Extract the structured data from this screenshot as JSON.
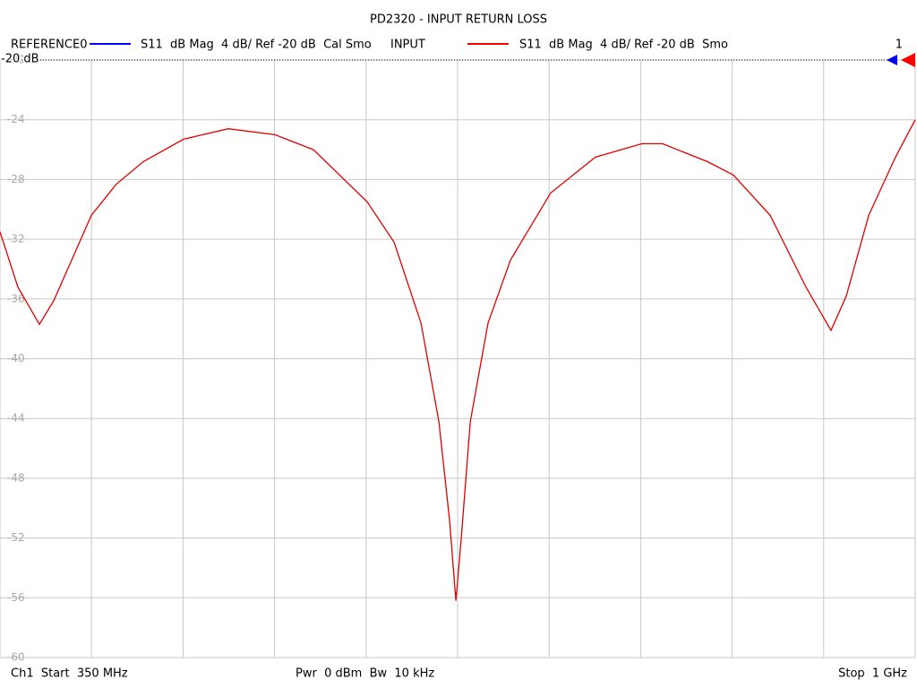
{
  "chart_data": {
    "type": "line",
    "title": "PD2320 - INPUT RETURN LOSS",
    "legend": [
      {
        "name": "REFERENCE0",
        "color": "#0000ff",
        "description": "S11  dB Mag  4 dB/ Ref -20 dB  Cal Smo"
      },
      {
        "name": "INPUT",
        "color": "#ff0000",
        "description": "S11  dB Mag  4 dB/ Ref -20 dB  Smo"
      }
    ],
    "channel_marker": "1",
    "ref_label": "-20 dB",
    "footer": {
      "start": "Ch1  Start  350 MHz",
      "center": "Pwr  0 dBm  Bw  10 kHz",
      "stop": "Stop  1 GHz"
    },
    "x": [
      350,
      362.7,
      378,
      388.2,
      400.9,
      414.9,
      432.7,
      451.8,
      480.4,
      512.2,
      545.3,
      572.6,
      610.8,
      629.9,
      649,
      661.7,
      669.3,
      673.8,
      677.6,
      684,
      696.6,
      712.5,
      741.1,
      772.9,
      806,
      820.6,
      852.4,
      870.9,
      897,
      922.4,
      940.2,
      951,
      967,
      986,
      1000
    ],
    "series": [
      {
        "name": "INPUT",
        "color": "#e00000",
        "values": [
          -31.5,
          -35.2,
          -37.7,
          -36.1,
          -33.4,
          -30.4,
          -28.3,
          -26.8,
          -25.3,
          -24.6,
          -25.0,
          -26.0,
          -29.5,
          -32.2,
          -37.6,
          -44.2,
          -50.8,
          -56.2,
          -52.0,
          -44.2,
          -37.6,
          -33.4,
          -28.9,
          -26.5,
          -25.6,
          -25.6,
          -26.8,
          -27.7,
          -30.4,
          -35.2,
          -38.1,
          -35.8,
          -30.4,
          -26.5,
          -24.0
        ]
      }
    ],
    "xlim": [
      350,
      1000
    ],
    "xticks": [
      350,
      415,
      480,
      545,
      610,
      675,
      740,
      805,
      870,
      935,
      1000
    ],
    "ylim": [
      -60,
      -20
    ],
    "yticks": [
      -20,
      -24,
      -28,
      -32,
      -36,
      -40,
      -44,
      -48,
      -52,
      -56,
      -60
    ],
    "grid": true
  }
}
